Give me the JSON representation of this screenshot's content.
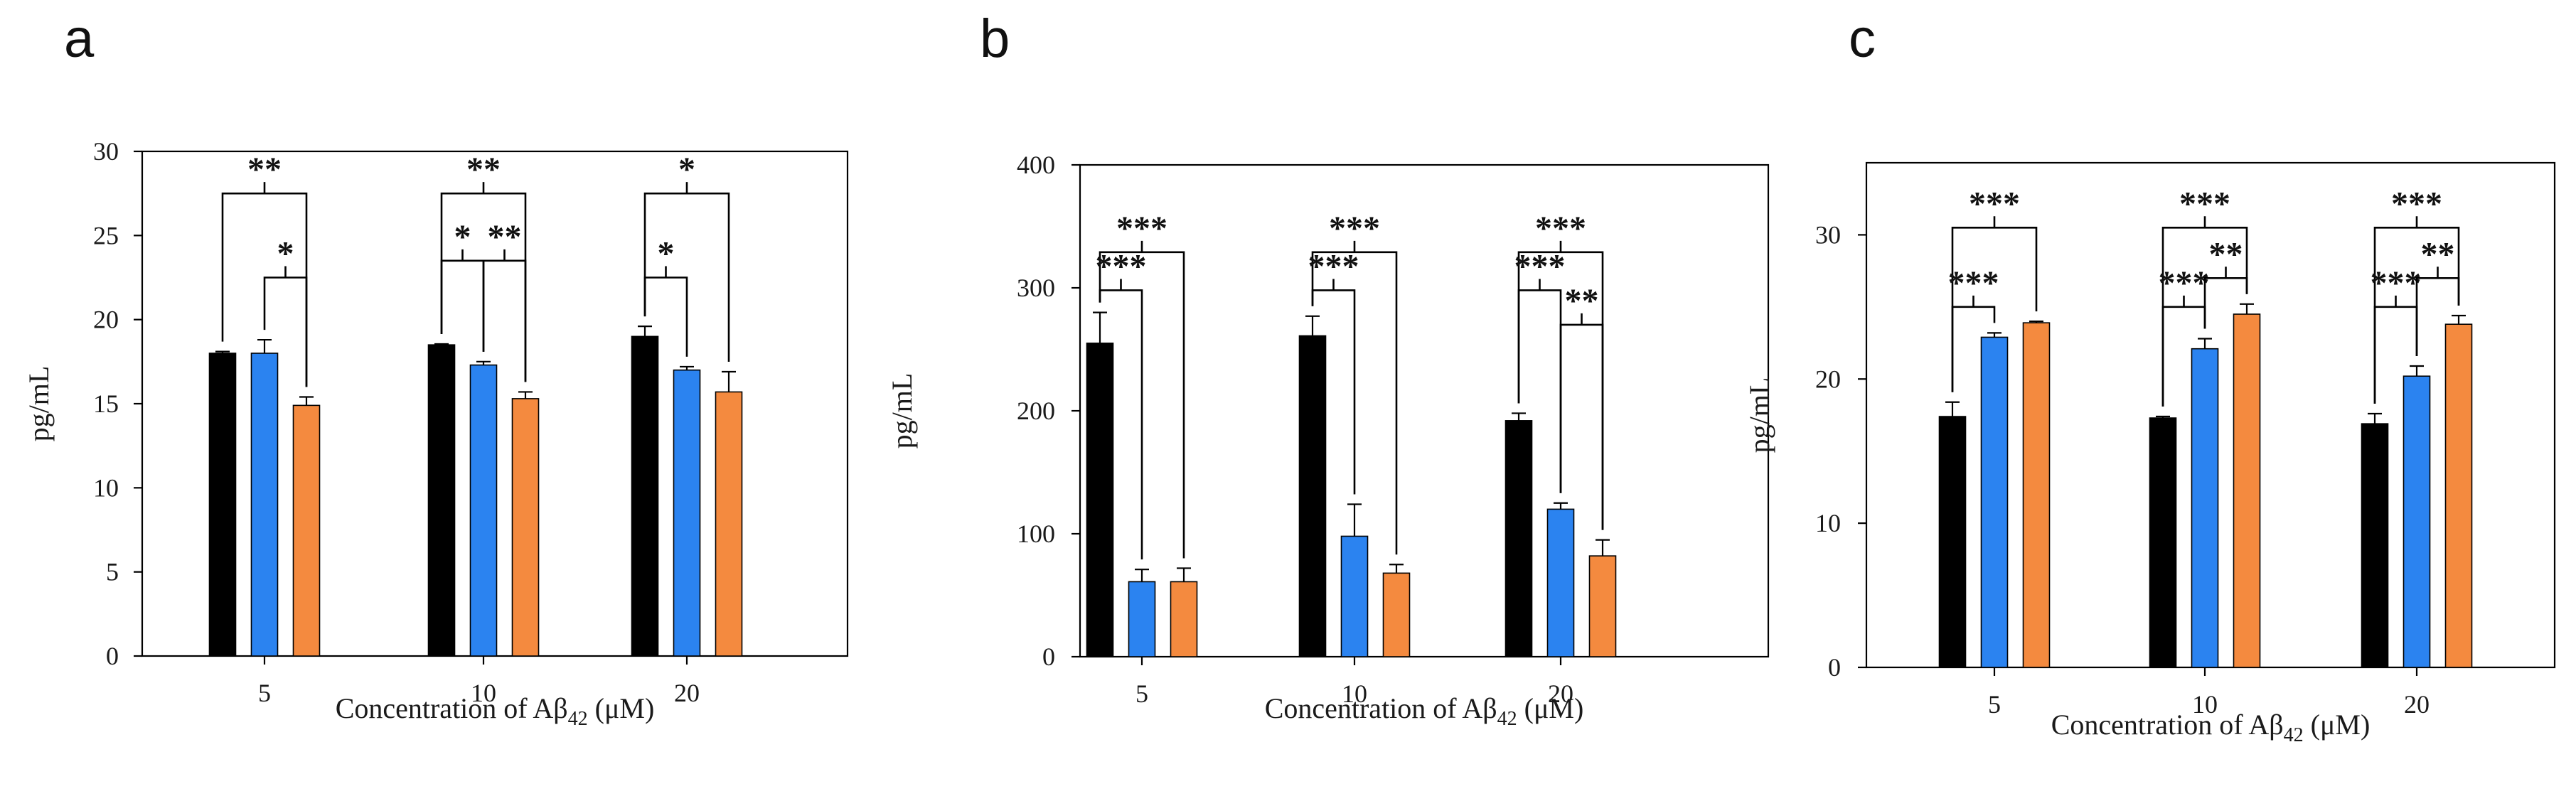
{
  "figure": {
    "colors": {
      "s1": "#000000",
      "s2": "#2b83f0",
      "s3": "#f48a3f"
    }
  },
  "chart_data": [
    {
      "panel": "a",
      "type": "bar",
      "categories": [
        "5",
        "10",
        "20"
      ],
      "series": [
        {
          "name": "black",
          "values": [
            18.0,
            18.5,
            19.0
          ],
          "errors": [
            0.1,
            0.05,
            0.6
          ]
        },
        {
          "name": "blue",
          "values": [
            18.0,
            17.3,
            17.0
          ],
          "errors": [
            0.8,
            0.2,
            0.2
          ]
        },
        {
          "name": "orange",
          "values": [
            14.9,
            15.3,
            15.7
          ],
          "errors": [
            0.5,
            0.4,
            1.2
          ]
        }
      ],
      "xlabel_pre": "Concentration of Aβ",
      "xlabel_sub": "42",
      "xlabel_post": " (μM)",
      "ylabel": "pg/mL",
      "ylim": [
        0,
        30
      ],
      "yticks": [
        0,
        5,
        10,
        15,
        20,
        25,
        30
      ],
      "significance": [
        {
          "group": 0,
          "from": 0,
          "to": 2,
          "label": "**",
          "level": 27.5
        },
        {
          "group": 0,
          "from": 1,
          "to": 2,
          "label": "*",
          "level": 22.5
        },
        {
          "group": 1,
          "from": 0,
          "to": 2,
          "label": "**",
          "level": 27.5
        },
        {
          "group": 1,
          "from": 0,
          "to": 1,
          "label": "*",
          "level": 23.5
        },
        {
          "group": 1,
          "from": 1,
          "to": 2,
          "label": "**",
          "level": 23.5
        },
        {
          "group": 2,
          "from": 0,
          "to": 2,
          "label": "*",
          "level": 27.5
        },
        {
          "group": 2,
          "from": 0,
          "to": 1,
          "label": "*",
          "level": 22.5
        }
      ]
    },
    {
      "panel": "b",
      "type": "bar",
      "categories": [
        "5",
        "10",
        "20"
      ],
      "series": [
        {
          "name": "black",
          "values": [
            255,
            261,
            192
          ],
          "errors": [
            25,
            16,
            6
          ]
        },
        {
          "name": "blue",
          "values": [
            61,
            98,
            120
          ],
          "errors": [
            10,
            26,
            5
          ]
        },
        {
          "name": "orange",
          "values": [
            61,
            68,
            82
          ],
          "errors": [
            11,
            7,
            13
          ]
        }
      ],
      "xlabel_pre": "Concentration of Aβ",
      "xlabel_sub": "42",
      "xlabel_post": " (μM)",
      "ylabel": "pg/mL",
      "ylim": [
        0,
        400
      ],
      "yticks": [
        0,
        100,
        200,
        300,
        400
      ],
      "significance": [
        {
          "group": 0,
          "from": 0,
          "to": 2,
          "label": "***",
          "level": 329
        },
        {
          "group": 0,
          "from": 0,
          "to": 1,
          "label": "***",
          "level": 298
        },
        {
          "group": 1,
          "from": 0,
          "to": 2,
          "label": "***",
          "level": 329
        },
        {
          "group": 1,
          "from": 0,
          "to": 1,
          "label": "***",
          "level": 298
        },
        {
          "group": 2,
          "from": 0,
          "to": 2,
          "label": "***",
          "level": 329
        },
        {
          "group": 2,
          "from": 0,
          "to": 1,
          "label": "***",
          "level": 298
        },
        {
          "group": 2,
          "from": 1,
          "to": 2,
          "label": "**",
          "level": 270
        }
      ]
    },
    {
      "panel": "c",
      "type": "bar",
      "categories": [
        "5",
        "10",
        "20"
      ],
      "series": [
        {
          "name": "black",
          "values": [
            17.4,
            17.3,
            16.9
          ],
          "errors": [
            1.0,
            0.1,
            0.7
          ]
        },
        {
          "name": "blue",
          "values": [
            22.9,
            22.1,
            20.2
          ],
          "errors": [
            0.3,
            0.7,
            0.7
          ]
        },
        {
          "name": "orange",
          "values": [
            23.9,
            24.5,
            23.8
          ],
          "errors": [
            0.1,
            0.7,
            0.6
          ]
        }
      ],
      "xlabel_pre": "Concentration of Aβ",
      "xlabel_sub": "42",
      "xlabel_post": " (μM)",
      "ylabel": "pg/mL",
      "ylim": [
        0,
        35
      ],
      "yticks": [
        0,
        10,
        20,
        30
      ],
      "significance": [
        {
          "group": 0,
          "from": 0,
          "to": 2,
          "label": "***",
          "level": 30.5
        },
        {
          "group": 0,
          "from": 0,
          "to": 1,
          "label": "***",
          "level": 25.0
        },
        {
          "group": 1,
          "from": 0,
          "to": 2,
          "label": "***",
          "level": 30.5
        },
        {
          "group": 1,
          "from": 0,
          "to": 1,
          "label": "***",
          "level": 25.0
        },
        {
          "group": 1,
          "from": 1,
          "to": 2,
          "label": "**",
          "level": 27.0
        },
        {
          "group": 2,
          "from": 0,
          "to": 2,
          "label": "***",
          "level": 30.5
        },
        {
          "group": 2,
          "from": 0,
          "to": 1,
          "label": "***",
          "level": 25.0
        },
        {
          "group": 2,
          "from": 1,
          "to": 2,
          "label": "**",
          "level": 27.0
        }
      ]
    }
  ]
}
